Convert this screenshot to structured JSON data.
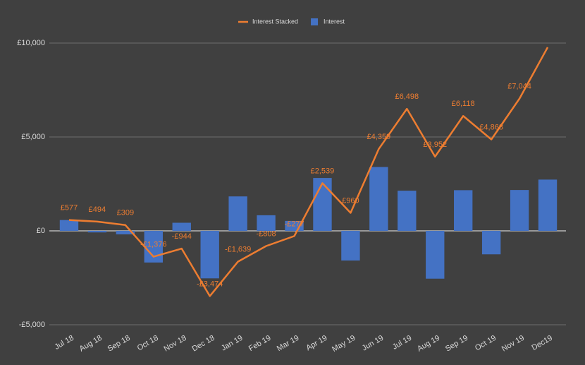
{
  "chart_data": {
    "type": "combo",
    "categories": [
      "Jul 18",
      "Aug 18",
      "Sep 18",
      "Oct 18",
      "Nov 18",
      "Dec 18",
      "Jan 19",
      "Feb 19",
      "Mar 19",
      "Apr 19",
      "May 19",
      "Jun 19",
      "Jul 19",
      "Aug 19",
      "Sep 19",
      "Oct 19",
      "Nov 19",
      "Dec19"
    ],
    "series": [
      {
        "name": "Interest Stacked",
        "type": "line",
        "color": "#ed7d31",
        "values": [
          577,
          494,
          309,
          -1376,
          -944,
          -3474,
          -1639,
          -808,
          -277,
          2539,
          960,
          4359,
          6498,
          3952,
          6118,
          4868,
          7044,
          9774
        ],
        "value_labels": [
          "£577",
          "£494",
          "£309",
          "-£1,376",
          "-£944",
          "-£3,474",
          "-£1,639",
          "-£808",
          "-£277",
          "£2,539",
          "£960",
          "£4,359",
          "£6,498",
          "£3,952",
          "£6,118",
          "£4,868",
          "£7,044",
          null
        ]
      },
      {
        "name": "Interest",
        "type": "bar",
        "color": "#4472c4",
        "values": [
          577,
          -83,
          -185,
          -1685,
          432,
          -2530,
          1835,
          831,
          531,
          2816,
          -1579,
          3399,
          2139,
          -2546,
          2166,
          -1250,
          2176,
          2730
        ]
      }
    ],
    "ylim": [
      -5000,
      10000
    ],
    "yticks": [
      {
        "value": -5000,
        "label": "-£5,000"
      },
      {
        "value": 0,
        "label": "£0"
      },
      {
        "value": 5000,
        "label": "£5,000"
      },
      {
        "value": 10000,
        "label": "£10,000"
      }
    ],
    "grid": true,
    "legend": "top"
  }
}
